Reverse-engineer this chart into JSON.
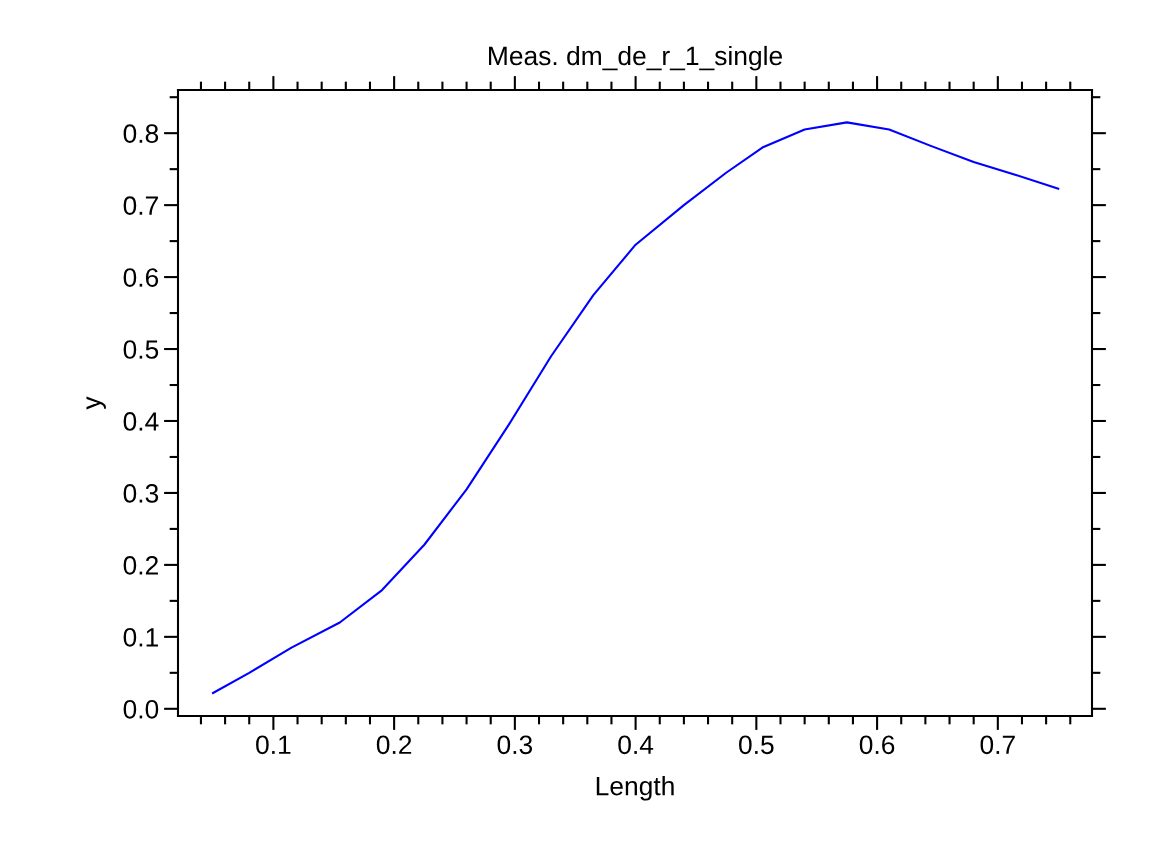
{
  "chart_data": {
    "type": "line",
    "title": "Meas. dm_de_r_1_single",
    "xlabel": "Length",
    "ylabel": "y",
    "x": [
      0.05,
      0.08,
      0.115,
      0.155,
      0.19,
      0.225,
      0.26,
      0.295,
      0.33,
      0.365,
      0.4,
      0.44,
      0.475,
      0.505,
      0.54,
      0.575,
      0.61,
      0.645,
      0.68,
      0.715,
      0.75
    ],
    "series": [
      {
        "color": "#0000ff",
        "values": [
          0.022,
          0.05,
          0.085,
          0.12,
          0.165,
          0.228,
          0.305,
          0.395,
          0.49,
          0.575,
          0.645,
          0.7,
          0.745,
          0.78,
          0.805,
          0.815,
          0.805,
          0.782,
          0.76,
          0.742,
          0.723
        ]
      }
    ],
    "xlim": [
      0.021,
      0.778
    ],
    "xticks": [
      0.1,
      0.2,
      0.3,
      0.4,
      0.5,
      0.6,
      0.7
    ],
    "ylim": [
      -0.01,
      0.86
    ],
    "yticks": [
      {
        "value": 0.0,
        "label": "0.0"
      },
      0.1,
      0.2,
      0.3,
      0.4,
      0.5,
      0.6,
      0.7,
      0.8
    ],
    "grid": false,
    "marker": "none",
    "line_style": "solid"
  }
}
